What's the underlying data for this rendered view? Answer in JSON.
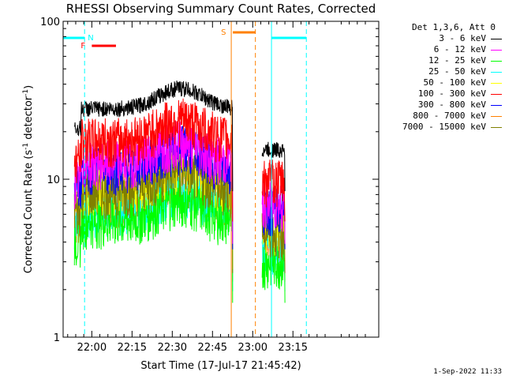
{
  "chart_data": {
    "type": "line",
    "title": "RHESSI Observing Summary Count Rates, Corrected",
    "xlabel": "Start Time (17-Jul-17 21:45:42)",
    "ylabel_parts": [
      "Corrected Count Rate (s",
      "-1",
      " detector",
      "-1",
      ")"
    ],
    "yscale": "log",
    "ylim": [
      1,
      100
    ],
    "xlim_minutes": [
      -10.7,
      107
    ],
    "xticks": [
      {
        "t": 0,
        "label": "22:00"
      },
      {
        "t": 15,
        "label": "22:15"
      },
      {
        "t": 30,
        "label": "22:30"
      },
      {
        "t": 45,
        "label": "22:45"
      },
      {
        "t": 60,
        "label": "23:00"
      },
      {
        "t": 75,
        "label": "23:15"
      }
    ],
    "yticks": [
      {
        "v": 1,
        "label": "1"
      },
      {
        "v": 10,
        "label": "10"
      },
      {
        "v": 100,
        "label": "100"
      }
    ],
    "legend_title": "Det 1,3,6, Att 0",
    "series": [
      {
        "name": "3 - 6 keV",
        "color": "#000000",
        "base": 28
      },
      {
        "name": "6 - 12 keV",
        "color": "#ff00ff",
        "base": 13
      },
      {
        "name": "12 - 25 keV",
        "color": "#00ff00",
        "base": 5.5
      },
      {
        "name": "25 - 50 keV",
        "color": "#00ffff",
        "base": 6.5
      },
      {
        "name": "50 - 100 keV",
        "color": "#ffff00",
        "base": 9
      },
      {
        "name": "100 - 300 keV",
        "color": "#ff0000",
        "base": 18
      },
      {
        "name": "300 - 800 keV",
        "color": "#0000ff",
        "base": 12
      },
      {
        "name": "800 - 7000 keV",
        "color": "#ff8000",
        "base": 7.5
      },
      {
        "name": "7000 - 15000 keV",
        "color": "#808000",
        "base": 8.5
      }
    ],
    "night_intervals": [
      {
        "label": "N",
        "start": -12,
        "end": -2.7,
        "color": "#00ffff"
      },
      {
        "label": "",
        "start": 67,
        "end": 80,
        "color": "#00ffff"
      }
    ],
    "saa_interval": {
      "label": "S",
      "start": 52,
      "end": 61,
      "color": "#ff8000"
    },
    "flare_interval": {
      "label": "F",
      "start": 0,
      "end": 9,
      "color": "#ff0000"
    },
    "data_segments": [
      [
        -6.5,
        52.5
      ],
      [
        63.5,
        72
      ]
    ]
  },
  "timestamp": "1-Sep-2022 11:33"
}
